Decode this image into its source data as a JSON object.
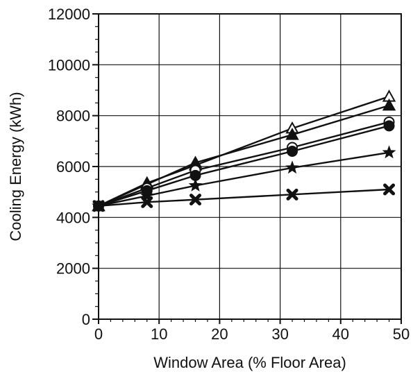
{
  "chart_data": {
    "type": "line",
    "title": "",
    "xlabel": "Window Area (% Floor Area)",
    "ylabel": "Cooling Energy (kWh)",
    "xlim": [
      0,
      50
    ],
    "ylim": [
      0,
      12000
    ],
    "x_ticks": [
      0,
      10,
      20,
      30,
      40,
      50
    ],
    "y_ticks": [
      0,
      2000,
      4000,
      6000,
      8000,
      10000,
      12000
    ],
    "grid": true,
    "legend": "none",
    "x": [
      0,
      8,
      16,
      32,
      48
    ],
    "series": [
      {
        "marker": "open-triangle",
        "values": [
          4450,
          5350,
          6050,
          7500,
          8750
        ]
      },
      {
        "marker": "filled-triangle",
        "values": [
          4450,
          5300,
          6150,
          7250,
          8400
        ]
      },
      {
        "marker": "open-circle",
        "values": [
          4450,
          5150,
          5850,
          6750,
          7750
        ]
      },
      {
        "marker": "filled-circle",
        "values": [
          4450,
          5050,
          5650,
          6600,
          7600
        ]
      },
      {
        "marker": "filled-star",
        "values": [
          4450,
          4850,
          5250,
          5950,
          6550
        ]
      },
      {
        "marker": "x-cross",
        "values": [
          4450,
          4600,
          4700,
          4900,
          5100
        ]
      }
    ]
  }
}
